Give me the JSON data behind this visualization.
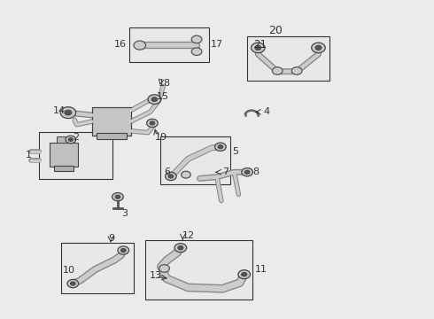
{
  "bg": "#ebebeb",
  "fg": "#333333",
  "fig_w": 4.9,
  "fig_h": 3.6,
  "dpi": 100,
  "boxes": {
    "b16_17": [
      0.295,
      0.805,
      0.185,
      0.115
    ],
    "b20_21": [
      0.565,
      0.745,
      0.195,
      0.145
    ],
    "b1_2": [
      0.085,
      0.435,
      0.175,
      0.155
    ],
    "b5_6_7": [
      0.365,
      0.42,
      0.165,
      0.155
    ],
    "b9_10": [
      0.135,
      0.075,
      0.175,
      0.165
    ],
    "b11_13": [
      0.33,
      0.055,
      0.255,
      0.195
    ]
  }
}
